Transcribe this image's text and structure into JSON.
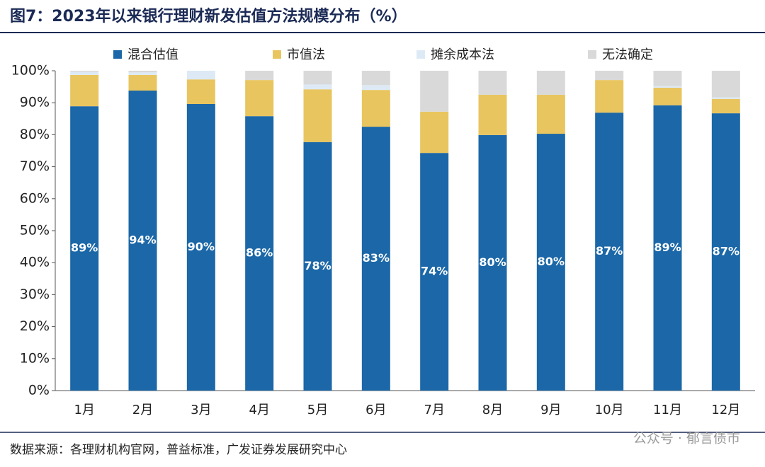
{
  "chart_data": {
    "type": "stacked_bar",
    "title": "图7：2023年以来银行理财新发估值方法规模分布（%）",
    "source": "数据来源：各理财机构官网，普益标准，广发证券发展研究中心",
    "watermark": "公众号 · 郁言债市",
    "categories": [
      "1月",
      "2月",
      "3月",
      "4月",
      "5月",
      "6月",
      "7月",
      "8月",
      "9月",
      "10月",
      "11月",
      "12月"
    ],
    "ylim": [
      0,
      100
    ],
    "yticks": [
      {
        "value": 0,
        "label": "0%"
      },
      {
        "value": 10,
        "label": "10%"
      },
      {
        "value": 20,
        "label": "20%"
      },
      {
        "value": 30,
        "label": "30%"
      },
      {
        "value": 40,
        "label": "40%"
      },
      {
        "value": 50,
        "label": "50%"
      },
      {
        "value": 60,
        "label": "60%"
      },
      {
        "value": 70,
        "label": "70%"
      },
      {
        "value": 80,
        "label": "80%"
      },
      {
        "value": 90,
        "label": "90%"
      },
      {
        "value": 100,
        "label": "100%"
      }
    ],
    "legend": "top",
    "series": [
      {
        "name": "混合估值",
        "color": "#1b67a7",
        "values": [
          88.9,
          93.8,
          89.6,
          85.8,
          77.7,
          82.5,
          74.3,
          79.9,
          80.3,
          86.9,
          89.2,
          86.7
        ],
        "value_labels": [
          "89%",
          "94%",
          "90%",
          "86%",
          "78%",
          "83%",
          "74%",
          "80%",
          "80%",
          "87%",
          "89%",
          "87%"
        ]
      },
      {
        "name": "市值法",
        "color": "#e8c55f",
        "values": [
          9.8,
          4.9,
          7.7,
          11.3,
          16.5,
          11.5,
          12.9,
          12.6,
          12.2,
          10.2,
          5.5,
          4.5
        ]
      },
      {
        "name": "摊余成本法",
        "color": "#ddeaf6",
        "values": [
          1.0,
          0.8,
          2.7,
          0,
          1.5,
          1.5,
          0,
          0,
          0,
          0,
          0.5,
          0.5
        ]
      },
      {
        "name": "无法确定",
        "color": "#d9d9d9",
        "values": [
          0.3,
          0.5,
          0,
          2.9,
          4.3,
          4.5,
          12.8,
          7.5,
          7.5,
          2.9,
          4.8,
          8.3
        ]
      }
    ]
  }
}
